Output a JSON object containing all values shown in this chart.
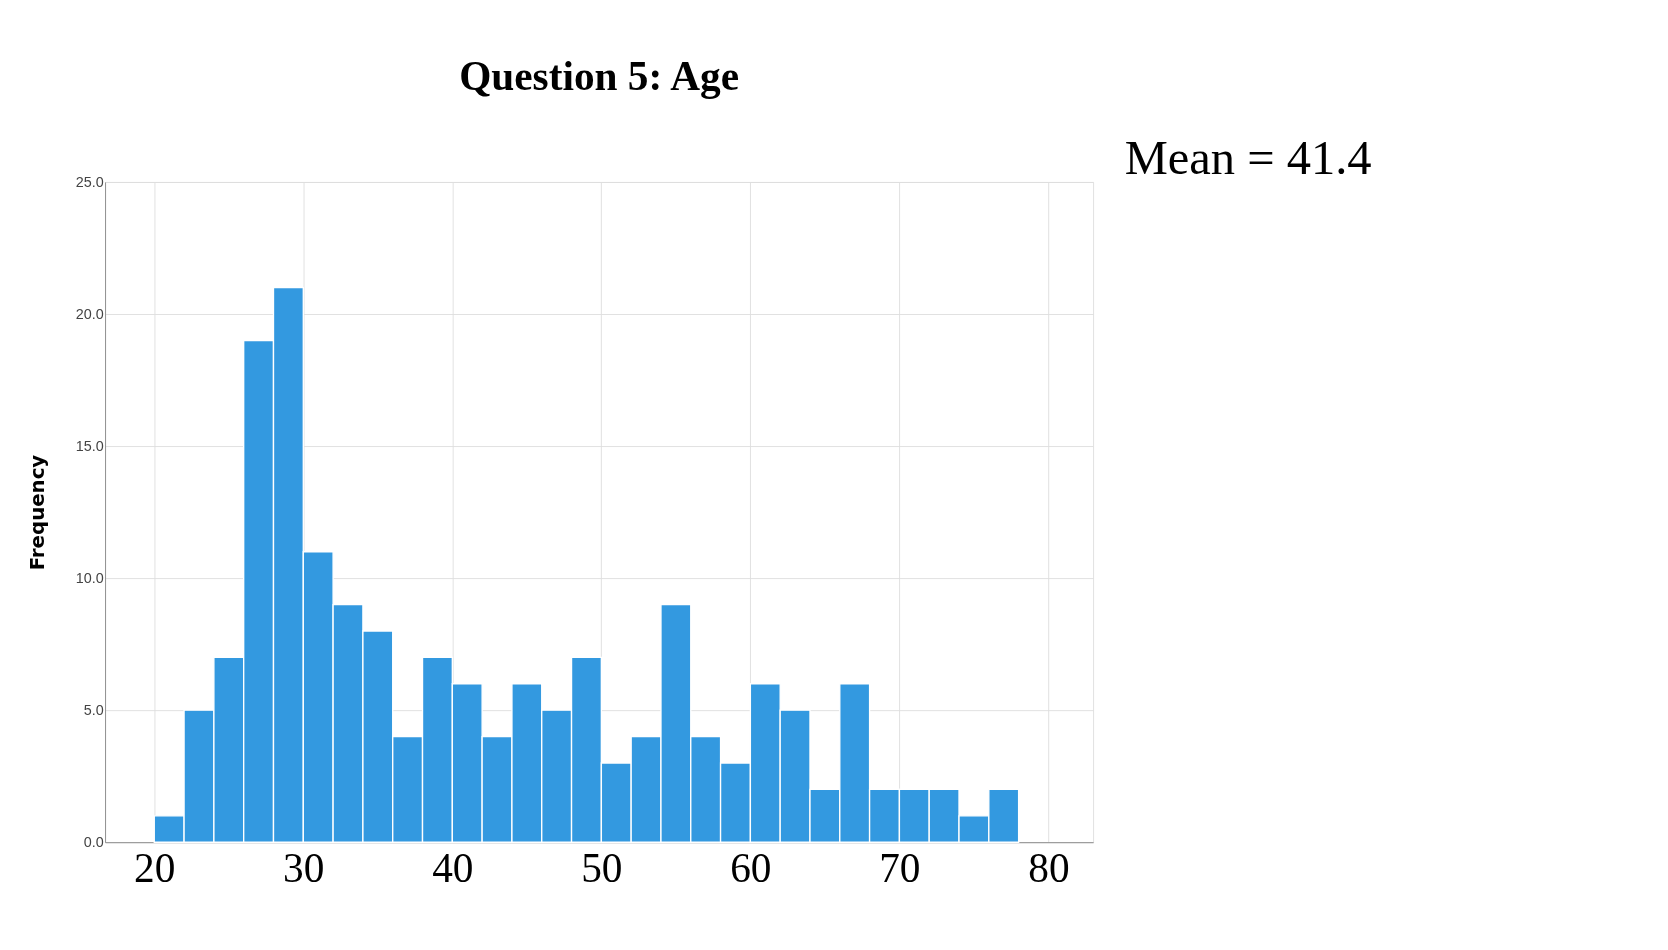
{
  "chart_data": {
    "type": "histogram",
    "title": "Question 5: Age",
    "ylabel": "Frequency",
    "bins": [
      20,
      22,
      24,
      26,
      28,
      30,
      32,
      34,
      36,
      38,
      40,
      42,
      44,
      46,
      48,
      50,
      52,
      54,
      56,
      58,
      60,
      62,
      64,
      66,
      68,
      70,
      72,
      74,
      76,
      78
    ],
    "values": [
      1,
      5,
      7,
      19,
      21,
      11,
      9,
      8,
      4,
      7,
      6,
      4,
      6,
      5,
      7,
      3,
      4,
      9,
      4,
      3,
      6,
      5,
      2,
      6,
      2,
      2,
      2,
      1,
      2
    ],
    "color": "#3399e0",
    "xlim": [
      16.7,
      83
    ],
    "xticks": [
      20,
      30,
      40,
      50,
      60,
      70,
      80
    ],
    "ylim": [
      0,
      25
    ],
    "yticks": [
      {
        "value": 0,
        "label": "0.0"
      },
      {
        "value": 5,
        "label": "5.0"
      },
      {
        "value": 10,
        "label": "10.0"
      },
      {
        "value": 15,
        "label": "15.0"
      },
      {
        "value": 20,
        "label": "20.0"
      },
      {
        "value": 25,
        "label": "25.0"
      }
    ],
    "grid": true,
    "annotations": [
      "Mean = 41.4"
    ]
  }
}
